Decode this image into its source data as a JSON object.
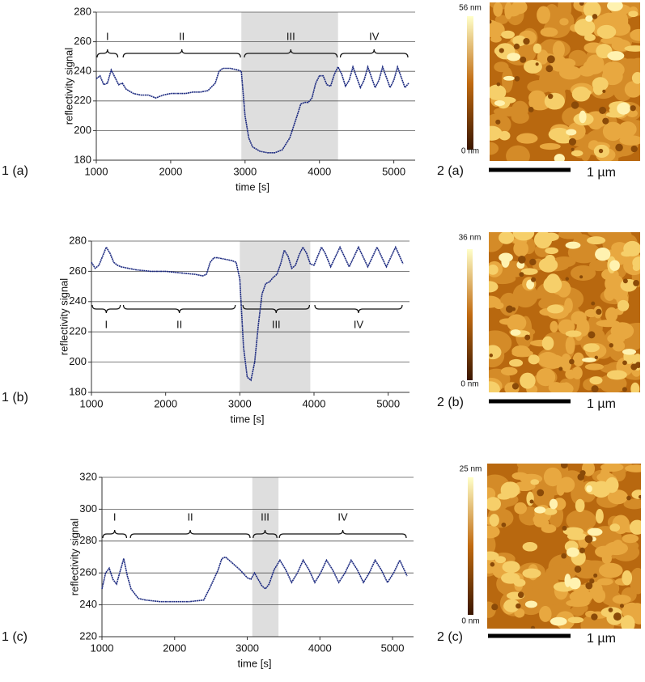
{
  "chart_data": [
    {
      "type": "line",
      "panel_label": "1 (a)",
      "xlabel": "time [s]",
      "ylabel": "reflectivity signal",
      "color": "#1c2a80",
      "grid": true,
      "xlim": [
        1000,
        5200
      ],
      "ylim": [
        180,
        280
      ],
      "xticks": [
        1000,
        2000,
        3000,
        4000,
        5000
      ],
      "yticks": [
        180,
        200,
        220,
        240,
        260,
        280
      ],
      "highlight": {
        "start": 2950,
        "end": 4250
      },
      "regions": [
        {
          "label": "I",
          "start": 1000,
          "end": 1300
        },
        {
          "label": "II",
          "start": 1350,
          "end": 2950
        },
        {
          "label": "III",
          "start": 2980,
          "end": 4250
        },
        {
          "label": "IV",
          "start": 4270,
          "end": 5200
        }
      ],
      "x": [
        1000,
        1050,
        1100,
        1150,
        1200,
        1250,
        1300,
        1350,
        1400,
        1500,
        1600,
        1700,
        1800,
        1900,
        2000,
        2100,
        2200,
        2300,
        2400,
        2500,
        2600,
        2650,
        2700,
        2800,
        2900,
        2950,
        3000,
        3050,
        3100,
        3200,
        3300,
        3400,
        3500,
        3600,
        3700,
        3750,
        3800,
        3850,
        3900,
        3950,
        4000,
        4050,
        4100,
        4150,
        4200,
        4250,
        4300,
        4350,
        4400,
        4450,
        4500,
        4550,
        4600,
        4650,
        4700,
        4750,
        4800,
        4850,
        4900,
        4950,
        5000,
        5050,
        5100,
        5150,
        5200
      ],
      "values": [
        235,
        237,
        231,
        232,
        241,
        236,
        231,
        232,
        228,
        225,
        224,
        224,
        222,
        224,
        225,
        225,
        225,
        226,
        226,
        227,
        232,
        240,
        242,
        242,
        241,
        240,
        210,
        195,
        189,
        186,
        185,
        185,
        187,
        195,
        210,
        218,
        219,
        219,
        222,
        232,
        237,
        237,
        231,
        230,
        238,
        243,
        238,
        230,
        234,
        243,
        236,
        229,
        234,
        243,
        236,
        229,
        234,
        243,
        236,
        229,
        234,
        243,
        236,
        229,
        232
      ]
    },
    {
      "type": "line",
      "panel_label": "1 (b)",
      "xlabel": "time [s]",
      "ylabel": "reflectivity signal",
      "color": "#1c2a80",
      "grid": true,
      "xlim": [
        1000,
        5200
      ],
      "ylim": [
        180,
        280
      ],
      "xticks": [
        1000,
        2000,
        3000,
        4000,
        5000
      ],
      "yticks": [
        180,
        200,
        220,
        240,
        260,
        280
      ],
      "highlight": {
        "start": 3000,
        "end": 3950
      },
      "regions": [
        {
          "label": "I",
          "start": 1000,
          "end": 1400
        },
        {
          "label": "II",
          "start": 1420,
          "end": 2950
        },
        {
          "label": "III",
          "start": 3030,
          "end": 3950
        },
        {
          "label": "IV",
          "start": 4000,
          "end": 5200
        }
      ],
      "x": [
        1000,
        1050,
        1100,
        1150,
        1200,
        1250,
        1300,
        1350,
        1400,
        1500,
        1600,
        1800,
        2000,
        2200,
        2400,
        2500,
        2550,
        2600,
        2650,
        2700,
        2800,
        2900,
        2950,
        3000,
        3050,
        3100,
        3150,
        3200,
        3250,
        3300,
        3350,
        3400,
        3450,
        3500,
        3550,
        3600,
        3650,
        3700,
        3750,
        3800,
        3850,
        3900,
        3950,
        4000,
        4050,
        4100,
        4150,
        4225,
        4350,
        4475,
        4600,
        4725,
        4850,
        4975,
        5100,
        5200
      ],
      "values": [
        266,
        262,
        264,
        270,
        276,
        272,
        266,
        264,
        263,
        262,
        261,
        260,
        260,
        259,
        258,
        257,
        258,
        266,
        269,
        269,
        268,
        267,
        266,
        255,
        210,
        190,
        188,
        200,
        225,
        245,
        252,
        253,
        256,
        258,
        265,
        274,
        270,
        262,
        264,
        271,
        276,
        272,
        265,
        264,
        270,
        276,
        272,
        263,
        276,
        263,
        276,
        263,
        276,
        263,
        276,
        265
      ]
    },
    {
      "type": "line",
      "panel_label": "1 (c)",
      "xlabel": "time [s]",
      "ylabel": "reflectivity signal",
      "color": "#1c2a80",
      "grid": true,
      "xlim": [
        1000,
        5200
      ],
      "ylim": [
        220,
        320
      ],
      "xticks": [
        1000,
        2000,
        3000,
        4000,
        5000
      ],
      "yticks": [
        220,
        240,
        260,
        280,
        300,
        320
      ],
      "highlight": {
        "start": 3070,
        "end": 3430
      },
      "regions": [
        {
          "label": "I",
          "start": 1000,
          "end": 1350
        },
        {
          "label": "II",
          "start": 1380,
          "end": 3050
        },
        {
          "label": "III",
          "start": 3070,
          "end": 3420
        },
        {
          "label": "IV",
          "start": 3430,
          "end": 5200
        }
      ],
      "x": [
        1000,
        1050,
        1100,
        1150,
        1200,
        1250,
        1300,
        1350,
        1400,
        1500,
        1600,
        1800,
        2000,
        2200,
        2400,
        2500,
        2600,
        2650,
        2700,
        2800,
        2900,
        3000,
        3050,
        3100,
        3150,
        3200,
        3250,
        3300,
        3370,
        3450,
        3530,
        3610,
        3690,
        3770,
        3850,
        3930,
        4010,
        4090,
        4175,
        4260,
        4345,
        4430,
        4515,
        4600,
        4680,
        4760,
        4845,
        4930,
        5015,
        5100,
        5200
      ],
      "values": [
        250,
        260,
        263,
        256,
        253,
        261,
        269,
        258,
        250,
        244,
        243,
        242,
        242,
        242,
        243,
        252,
        262,
        269,
        270,
        266,
        262,
        257,
        256,
        260,
        256,
        252,
        250,
        253,
        262,
        268,
        262,
        254,
        260,
        268,
        262,
        254,
        260,
        268,
        262,
        254,
        260,
        268,
        262,
        254,
        260,
        268,
        262,
        254,
        260,
        268,
        258
      ]
    }
  ],
  "afm_images": [
    {
      "panel_label": "2 (a)",
      "colorbar_max": "56 nm",
      "colorbar_min": "0 nm",
      "scale_bar": "1 µm"
    },
    {
      "panel_label": "2 (b)",
      "colorbar_max": "36 nm",
      "colorbar_min": "0 nm",
      "scale_bar": "1 µm"
    },
    {
      "panel_label": "2 (c)",
      "colorbar_max": "25 nm",
      "colorbar_min": "0 nm",
      "scale_bar": "1 µm"
    }
  ]
}
